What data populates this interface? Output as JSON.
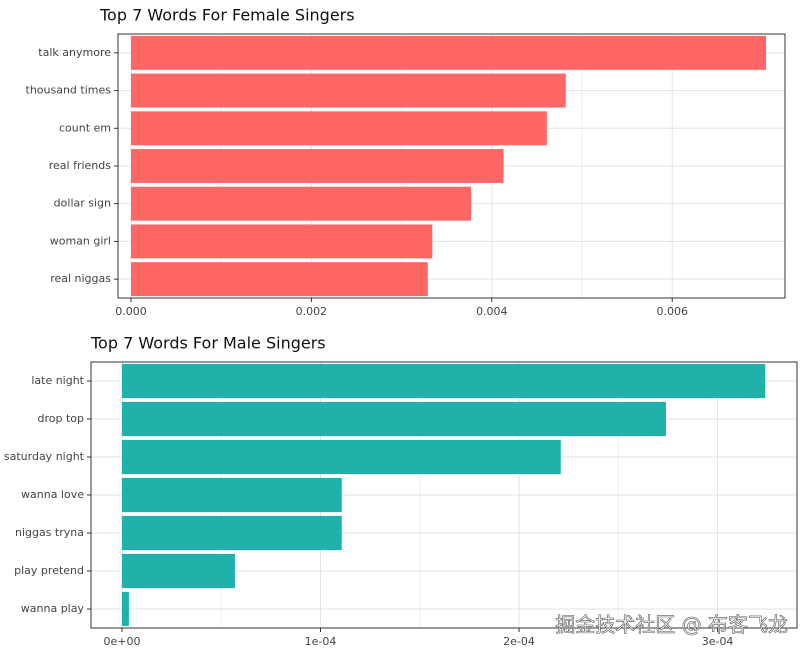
{
  "chart_data": [
    {
      "type": "barh",
      "title": "Top 7 Words For Female Singers",
      "categories": [
        "talk anymore",
        "thousand times",
        "count em",
        "real friends",
        "dollar sign",
        "woman girl",
        "real niggas"
      ],
      "values": [
        0.00704,
        0.00482,
        0.00461,
        0.00413,
        0.00377,
        0.00334,
        0.00329
      ],
      "color": "#ff6666",
      "xlim": [
        -0.000144,
        0.00725
      ],
      "xticks": [
        {
          "value": 0,
          "label": "0.000"
        },
        {
          "value": 0.002,
          "label": "0.002"
        },
        {
          "value": 0.004,
          "label": "0.004"
        },
        {
          "value": 0.006,
          "label": "0.006"
        }
      ],
      "grid": true
    },
    {
      "type": "barh",
      "title": "Top 7 Words For Male Singers",
      "categories": [
        "late night",
        "drop top",
        "saturday night",
        "wanna love",
        "niggas tryna",
        "play pretend",
        "wanna play"
      ],
      "values": [
        0.000324,
        0.000274,
        0.000221,
        0.0001107,
        0.0001107,
        5.69e-05,
        3.5e-06
      ],
      "color": "#20b2aa",
      "xlim": [
        -1.56e-05,
        0.00034
      ],
      "xticks": [
        {
          "value": 0,
          "label": "0e+00"
        },
        {
          "value": 0.0001,
          "label": "1e-04"
        },
        {
          "value": 0.0002,
          "label": "2e-04"
        },
        {
          "value": 0.0003,
          "label": "3e-04"
        }
      ],
      "grid": true,
      "watermark": "掘金技术社区 @ 布客飞龙"
    }
  ]
}
